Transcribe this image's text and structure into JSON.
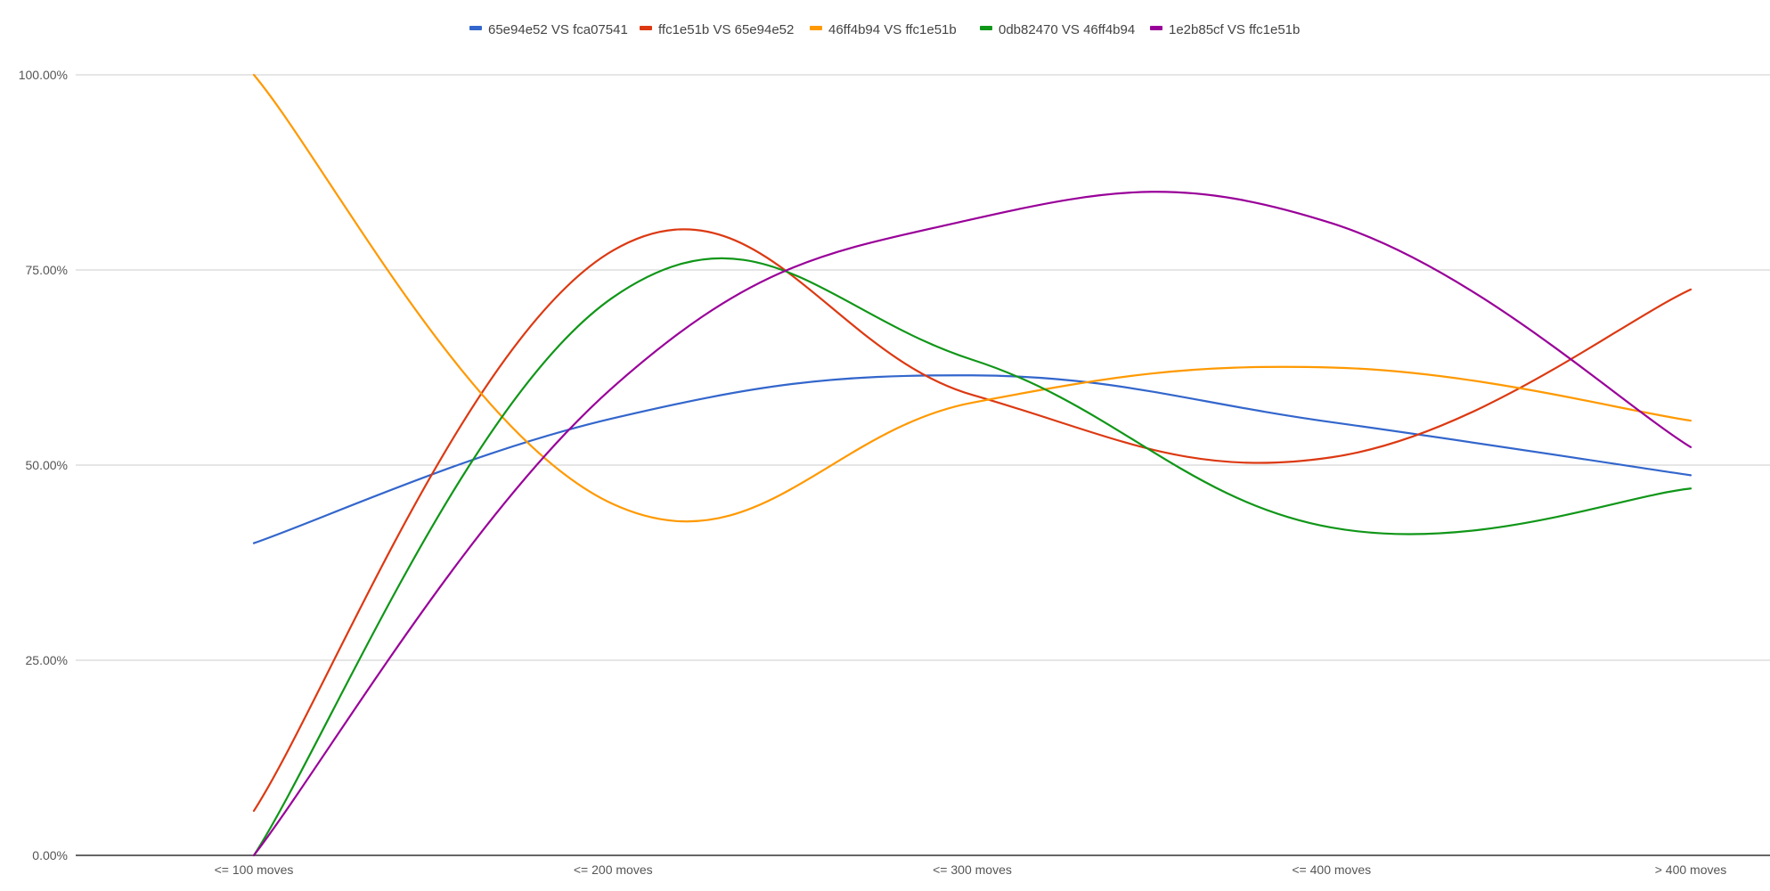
{
  "chart_data": {
    "type": "line",
    "title": "",
    "xlabel": "",
    "ylabel": "",
    "legend_position": "top",
    "smooth": true,
    "grid": true,
    "ylim": [
      0,
      1
    ],
    "y_ticks": [
      {
        "value": 0,
        "label": "0.00%"
      },
      {
        "value": 0.25,
        "label": "25.00%"
      },
      {
        "value": 0.5,
        "label": "50.00%"
      },
      {
        "value": 0.75,
        "label": "75.00%"
      },
      {
        "value": 1,
        "label": "100.00%"
      }
    ],
    "categories": [
      "<= 100 moves",
      "<= 200 moves",
      "<= 300 moves",
      "<= 400 moves",
      "> 400 moves"
    ],
    "series": [
      {
        "name": "65e94e52 VS fca07541",
        "color": "#3366cc",
        "values": [
          0.4,
          0.56,
          0.615,
          0.555,
          0.487
        ]
      },
      {
        "name": "ffc1e51b VS 65e94e52",
        "color": "#dc3912",
        "values": [
          0.057,
          0.775,
          0.59,
          0.51,
          0.725
        ]
      },
      {
        "name": "46ff4b94 VS ffc1e51b",
        "color": "#ff9900",
        "values": [
          1.0,
          0.45,
          0.58,
          0.625,
          0.557
        ]
      },
      {
        "name": "0db82470 VS 46ff4b94",
        "color": "#109618",
        "values": [
          0.0,
          0.715,
          0.635,
          0.42,
          0.47
        ]
      },
      {
        "name": "1e2b85cf VS ffc1e51b",
        "color": "#990099",
        "values": [
          0.0,
          0.6,
          0.815,
          0.81,
          0.523
        ]
      }
    ]
  }
}
